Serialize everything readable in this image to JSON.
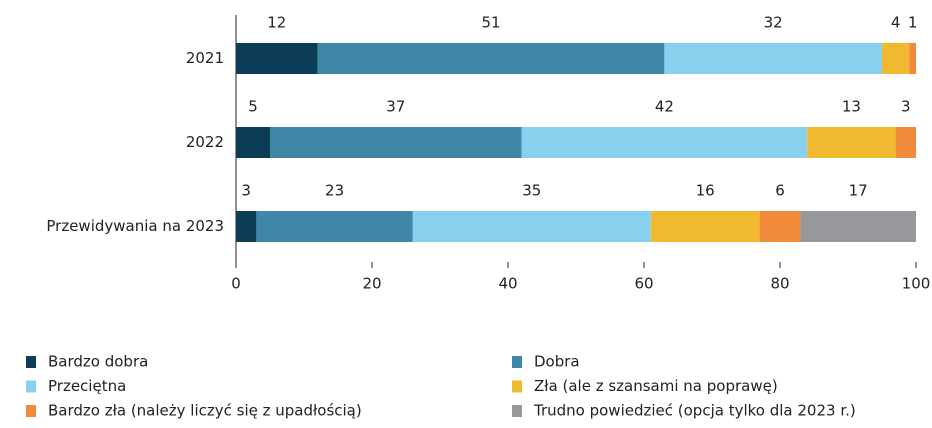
{
  "chart_data": {
    "type": "stacked_bar_horizontal",
    "categories": [
      "2021",
      "2022",
      "Przewidywania na 2023"
    ],
    "series": [
      {
        "name": "Bardzo dobra",
        "color": "#0b3d56",
        "values": [
          12,
          5,
          3
        ]
      },
      {
        "name": "Dobra",
        "color": "#3e87a6",
        "values": [
          51,
          37,
          23
        ]
      },
      {
        "name": "Przeciętna",
        "color": "#87d1ef",
        "values": [
          32,
          42,
          35
        ]
      },
      {
        "name": "Zła (ale z szansami na poprawę)",
        "color": "#f1b930",
        "values": [
          4,
          13,
          16
        ]
      },
      {
        "name": "Bardzo zła (należy liczyć się z upadłością)",
        "color": "#f28a3b",
        "values": [
          1,
          3,
          6
        ]
      },
      {
        "name": "Trudno powiedzieć (opcja tylko dla 2023 r.)",
        "color": "#96989b",
        "values": [
          null,
          null,
          17
        ]
      }
    ],
    "xlim": [
      0,
      100
    ],
    "xticks": [
      0,
      20,
      40,
      60,
      80,
      100
    ]
  }
}
